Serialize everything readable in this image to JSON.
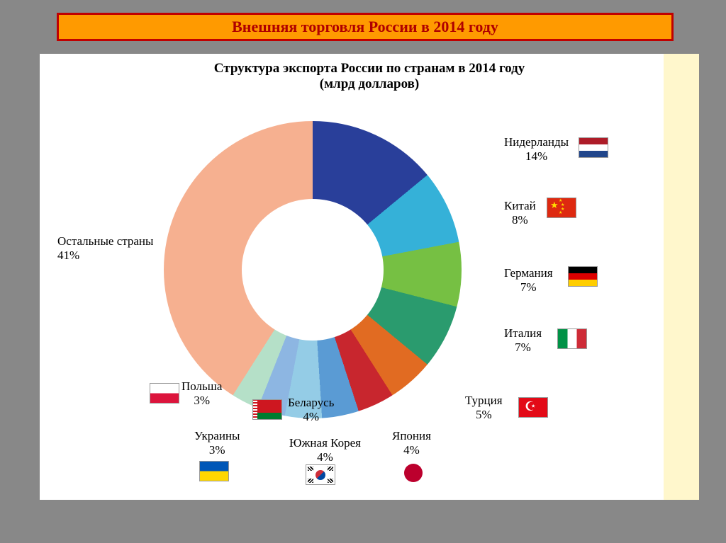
{
  "banner": "Внешняя торговля России в 2014 году",
  "chart_title_line1": "Структура экспорта России по странам в 2014 году",
  "chart_title_line2": "(млрд долларов)",
  "chart": {
    "type": "donut",
    "start_angle_deg": 0,
    "inner_radius_ratio": 0.48,
    "background": "#ffffff",
    "slices": [
      {
        "country": "Нидерланды",
        "pct": 14,
        "color": "#293f9a"
      },
      {
        "country": "Китай",
        "pct": 8,
        "color": "#35b1d8"
      },
      {
        "country": "Германия",
        "pct": 7,
        "color": "#76c043"
      },
      {
        "country": "Италия",
        "pct": 7,
        "color": "#2a9b6e"
      },
      {
        "country": "Турция",
        "pct": 5,
        "color": "#e16b22"
      },
      {
        "country": "Япония",
        "pct": 4,
        "color": "#c8262e"
      },
      {
        "country": "Южная Корея",
        "pct": 4,
        "color": "#5a9bd4"
      },
      {
        "country": "Беларусь",
        "pct": 4,
        "color": "#94cce6"
      },
      {
        "country": "Украины",
        "pct": 3,
        "color": "#8db6e2"
      },
      {
        "country": "Польша",
        "pct": 3,
        "color": "#b5e0c8"
      },
      {
        "country": "Остальные страны",
        "pct": 41,
        "color": "#f6b090"
      }
    ]
  },
  "labels": {
    "netherlands": {
      "name": "Нидерланды",
      "pct": "14%"
    },
    "china": {
      "name": "Китай",
      "pct": "8%"
    },
    "germany": {
      "name": "Германия",
      "pct": "7%"
    },
    "italy": {
      "name": "Италия",
      "pct": "7%"
    },
    "turkey": {
      "name": "Турция",
      "pct": "5%"
    },
    "japan": {
      "name": "Япония",
      "pct": "4%"
    },
    "skorea": {
      "name": "Южная Корея",
      "pct": "4%"
    },
    "belarus": {
      "name": "Беларусь",
      "pct": "4%"
    },
    "ukraine": {
      "name": "Украины",
      "pct": "3%"
    },
    "poland": {
      "name": "Польша",
      "pct": "3%"
    },
    "others": {
      "name": "Остальные страны",
      "pct": "41%"
    }
  },
  "flags": {
    "netherlands": {
      "stripes": [
        "#ae1c28",
        "#ffffff",
        "#21468b"
      ],
      "dir": "h"
    },
    "china": {
      "bg": "#de2910",
      "star": "#ffde00"
    },
    "germany": {
      "stripes": [
        "#000000",
        "#dd0000",
        "#ffce00"
      ],
      "dir": "h"
    },
    "italy": {
      "stripes": [
        "#009246",
        "#ffffff",
        "#ce2b37"
      ],
      "dir": "v"
    },
    "turkey": {
      "bg": "#e30a17",
      "fg": "#ffffff"
    },
    "japan": {
      "bg": "#ffffff",
      "disc": "#bc002d"
    },
    "skorea": {
      "bg": "#ffffff",
      "red": "#cd2e3a",
      "blue": "#0047a0",
      "black": "#000000"
    },
    "belarus": {
      "top": "#ce1720",
      "bottom": "#007c30",
      "band": "#ffffff"
    },
    "ukraine": {
      "top": "#0057b7",
      "bottom": "#ffd700"
    },
    "poland": {
      "top": "#ffffff",
      "bottom": "#dc143c"
    }
  },
  "styling": {
    "banner_bg": "#ff9a00",
    "banner_border": "#c00000",
    "banner_text": "#b00000",
    "title_fontsize": 19,
    "label_fontsize": 17,
    "panel_bg": "#ffffff",
    "page_bg": "#888888",
    "cream": "#fff7cc"
  }
}
